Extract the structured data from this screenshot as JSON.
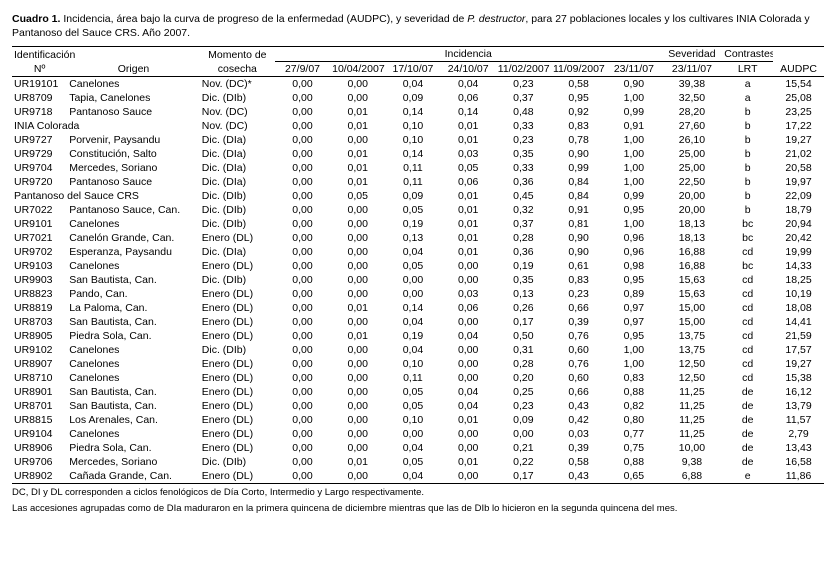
{
  "caption": {
    "lead": "Cuadro 1.",
    "text_a": " Incidencia, área bajo la curva de progreso de la enfermedad (AUDPC), y severidad de ",
    "ital": "P. destructor",
    "text_b": ", para 27 poblaciones locales y los cultivares INIA Colorada y Pantanoso del Sauce CRS. Año 2007."
  },
  "head": {
    "ident": "Identificación",
    "momento": "Momento de",
    "incid": "Incidencia",
    "sever": "Severidad",
    "contr": "Contrastes",
    "no": "Nº",
    "origen": "Origen",
    "cosecha": "cosecha",
    "d0": "27/9/07",
    "d1": "10/04/2007",
    "d2": "17/10/07",
    "d3": "24/10/07",
    "d4": "11/02/2007",
    "d5": "11/09/2007",
    "d6": "23/11/07",
    "d7": "23/11/07",
    "lrt": "LRT",
    "audpc": "AUDPC"
  },
  "rows": [
    {
      "n": "UR19101",
      "o": "Canelones",
      "m": "Nov. (DC)*",
      "v": [
        "0,00",
        "0,00",
        "0,04",
        "0,04",
        "0,23",
        "0,58",
        "0,90"
      ],
      "s": "39,38",
      "l": "a",
      "a": "15,54"
    },
    {
      "n": "UR8709",
      "o": "Tapia, Canelones",
      "m": "Dic. (DIb)",
      "v": [
        "0,00",
        "0,00",
        "0,09",
        "0,06",
        "0,37",
        "0,95",
        "1,00"
      ],
      "s": "32,50",
      "l": "a",
      "a": "25,08"
    },
    {
      "n": "UR9718",
      "o": "Pantanoso Sauce",
      "m": "Nov. (DC)",
      "v": [
        "0,00",
        "0,01",
        "0,14",
        "0,14",
        "0,48",
        "0,92",
        "0,99"
      ],
      "s": "28,20",
      "l": "b",
      "a": "23,25"
    },
    {
      "n": "INIA Colorada",
      "o": "",
      "m": "Nov. (DC)",
      "v": [
        "0,00",
        "0,01",
        "0,10",
        "0,01",
        "0,33",
        "0,83",
        "0,91"
      ],
      "s": "27,60",
      "l": "b",
      "a": "17,22"
    },
    {
      "n": "UR9727",
      "o": "Porvenir, Paysandu",
      "m": "Dic. (DIa)",
      "v": [
        "0,00",
        "0,00",
        "0,10",
        "0,01",
        "0,23",
        "0,78",
        "1,00"
      ],
      "s": "26,10",
      "l": "b",
      "a": "19,27"
    },
    {
      "n": "UR9729",
      "o": "Constitución, Salto",
      "m": "Dic. (DIa)",
      "v": [
        "0,00",
        "0,01",
        "0,14",
        "0,03",
        "0,35",
        "0,90",
        "1,00"
      ],
      "s": "25,00",
      "l": "b",
      "a": "21,02"
    },
    {
      "n": "UR9704",
      "o": "Mercedes, Soriano",
      "m": "Dic. (DIa)",
      "v": [
        "0,00",
        "0,01",
        "0,11",
        "0,05",
        "0,33",
        "0,99",
        "1,00"
      ],
      "s": "25,00",
      "l": "b",
      "a": "20,58"
    },
    {
      "n": "UR9720",
      "o": "Pantanoso Sauce",
      "m": "Dic. (DIa)",
      "v": [
        "0,00",
        "0,01",
        "0,11",
        "0,06",
        "0,36",
        "0,84",
        "1,00"
      ],
      "s": "22,50",
      "l": "b",
      "a": "19,97"
    },
    {
      "n": "Pantanoso del Sauce CRS",
      "o": "",
      "m": "Dic. (DIb)",
      "v": [
        "0,00",
        "0,05",
        "0,09",
        "0,01",
        "0,45",
        "0,84",
        "0,99"
      ],
      "s": "20,00",
      "l": "b",
      "a": "22,09"
    },
    {
      "n": "UR7022",
      "o": "Pantanoso Sauce, Can.",
      "m": "Dic. (DIb)",
      "v": [
        "0,00",
        "0,00",
        "0,05",
        "0,01",
        "0,32",
        "0,91",
        "0,95"
      ],
      "s": "20,00",
      "l": "b",
      "a": "18,79"
    },
    {
      "n": "UR9101",
      "o": "Canelones",
      "m": "Dic. (DIb)",
      "v": [
        "0,00",
        "0,00",
        "0,19",
        "0,01",
        "0,37",
        "0,81",
        "1,00"
      ],
      "s": "18,13",
      "l": "bc",
      "a": "20,94"
    },
    {
      "n": "UR7021",
      "o": "Canelón Grande, Can.",
      "m": "Enero (DL)",
      "v": [
        "0,00",
        "0,00",
        "0,13",
        "0,01",
        "0,28",
        "0,90",
        "0,96"
      ],
      "s": "18,13",
      "l": "bc",
      "a": "20,42"
    },
    {
      "n": "UR9702",
      "o": "Esperanza, Paysandu",
      "m": "Dic. (DIa)",
      "v": [
        "0,00",
        "0,00",
        "0,04",
        "0,01",
        "0,36",
        "0,90",
        "0,96"
      ],
      "s": "16,88",
      "l": "cd",
      "a": "19,99"
    },
    {
      "n": "UR9103",
      "o": "Canelones",
      "m": "Enero (DL)",
      "v": [
        "0,00",
        "0,00",
        "0,05",
        "0,00",
        "0,19",
        "0,61",
        "0,98"
      ],
      "s": "16,88",
      "l": "bc",
      "a": "14,33"
    },
    {
      "n": "UR9903",
      "o": "San Bautista, Can.",
      "m": "Dic. (DIb)",
      "v": [
        "0,00",
        "0,00",
        "0,00",
        "0,00",
        "0,35",
        "0,83",
        "0,95"
      ],
      "s": "15,63",
      "l": "cd",
      "a": "18,25"
    },
    {
      "n": "UR8823",
      "o": "Pando, Can.",
      "m": "Enero (DL)",
      "v": [
        "0,00",
        "0,00",
        "0,00",
        "0,03",
        "0,13",
        "0,23",
        "0,89"
      ],
      "s": "15,63",
      "l": "cd",
      "a": "10,19"
    },
    {
      "n": "UR8819",
      "o": "La Paloma, Can.",
      "m": "Enero (DL)",
      "v": [
        "0,00",
        "0,01",
        "0,14",
        "0,06",
        "0,26",
        "0,66",
        "0,97"
      ],
      "s": "15,00",
      "l": "cd",
      "a": "18,08"
    },
    {
      "n": "UR8703",
      "o": "San Bautista, Can.",
      "m": "Enero (DL)",
      "v": [
        "0,00",
        "0,00",
        "0,04",
        "0,00",
        "0,17",
        "0,39",
        "0,97"
      ],
      "s": "15,00",
      "l": "cd",
      "a": "14,41"
    },
    {
      "n": "UR8905",
      "o": "Piedra Sola, Can.",
      "m": "Enero (DL)",
      "v": [
        "0,00",
        "0,01",
        "0,19",
        "0,04",
        "0,50",
        "0,76",
        "0,95"
      ],
      "s": "13,75",
      "l": "cd",
      "a": "21,59"
    },
    {
      "n": "UR9102",
      "o": "Canelones",
      "m": "Dic. (DIb)",
      "v": [
        "0,00",
        "0,00",
        "0,04",
        "0,00",
        "0,31",
        "0,60",
        "1,00"
      ],
      "s": "13,75",
      "l": "cd",
      "a": "17,57"
    },
    {
      "n": "UR8907",
      "o": "Canelones",
      "m": "Enero (DL)",
      "v": [
        "0,00",
        "0,00",
        "0,10",
        "0,00",
        "0,28",
        "0,76",
        "1,00"
      ],
      "s": "12,50",
      "l": "cd",
      "a": "19,27"
    },
    {
      "n": "UR8710",
      "o": "Canelones",
      "m": "Enero (DL)",
      "v": [
        "0,00",
        "0,00",
        "0,11",
        "0,00",
        "0,20",
        "0,60",
        "0,83"
      ],
      "s": "12,50",
      "l": "cd",
      "a": "15,38"
    },
    {
      "n": "UR8901",
      "o": "San Bautista, Can.",
      "m": "Enero (DL)",
      "v": [
        "0,00",
        "0,00",
        "0,05",
        "0,04",
        "0,25",
        "0,66",
        "0,88"
      ],
      "s": "11,25",
      "l": "de",
      "a": "16,12"
    },
    {
      "n": "UR8701",
      "o": "San Bautista, Can.",
      "m": "Enero (DL)",
      "v": [
        "0,00",
        "0,00",
        "0,05",
        "0,04",
        "0,23",
        "0,43",
        "0,82"
      ],
      "s": "11,25",
      "l": "de",
      "a": "13,79"
    },
    {
      "n": "UR8815",
      "o": "Los Arenales, Can.",
      "m": "Enero (DL)",
      "v": [
        "0,00",
        "0,00",
        "0,10",
        "0,01",
        "0,09",
        "0,42",
        "0,80"
      ],
      "s": "11,25",
      "l": "de",
      "a": "11,57"
    },
    {
      "n": "UR9104",
      "o": "Canelones",
      "m": "Enero (DL)",
      "v": [
        "0,00",
        "0,00",
        "0,00",
        "0,00",
        "0,00",
        "0,03",
        "0,77"
      ],
      "s": "11,25",
      "l": "de",
      "a": "2,79"
    },
    {
      "n": "UR8906",
      "o": "Piedra Sola, Can.",
      "m": "Enero (DL)",
      "v": [
        "0,00",
        "0,00",
        "0,04",
        "0,00",
        "0,21",
        "0,39",
        "0,75"
      ],
      "s": "10,00",
      "l": "de",
      "a": "13,43"
    },
    {
      "n": "UR9706",
      "o": "Mercedes, Soriano",
      "m": "Dic. (DIb)",
      "v": [
        "0,00",
        "0,01",
        "0,05",
        "0,01",
        "0,22",
        "0,58",
        "0,88"
      ],
      "s": "9,38",
      "l": "de",
      "a": "16,58"
    },
    {
      "n": "UR8902",
      "o": "Cañada Grande, Can.",
      "m": "Enero (DL)",
      "v": [
        "0,00",
        "0,00",
        "0,04",
        "0,00",
        "0,17",
        "0,43",
        "0,65"
      ],
      "s": "6,88",
      "l": "e",
      "a": "11,86"
    }
  ],
  "foot": {
    "l1": "DC, DI y DL corresponden a ciclos fenológicos de Día Corto, Intermedio y Largo respectivamente.",
    "l2": "Las accesiones agrupadas como de DIa maduraron en la primera quincena de diciembre mientras que las de DIb lo hicieron en la segunda quincena del mes."
  }
}
